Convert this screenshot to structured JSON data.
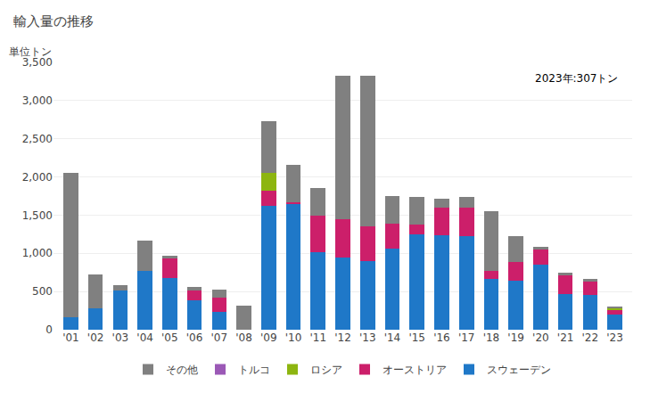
{
  "chart_data": {
    "type": "bar",
    "stacked": true,
    "title": "輸入量の推移",
    "ylabel": "単位トン",
    "annotation": "2023年:307トン",
    "categories": [
      "'01",
      "'02",
      "'03",
      "'04",
      "'05",
      "'06",
      "'07",
      "'08",
      "'09",
      "'10",
      "'11",
      "'12",
      "'13",
      "'14",
      "'15",
      "'16",
      "'17",
      "'18",
      "'19",
      "'20",
      "'21",
      "'22",
      "'23"
    ],
    "series": [
      {
        "name": "スウェーデン",
        "color": "#1f78c8",
        "values": [
          165,
          275,
          510,
          770,
          680,
          390,
          230,
          0,
          1620,
          1650,
          1020,
          950,
          900,
          1060,
          1250,
          1240,
          1230,
          670,
          645,
          855,
          465,
          450,
          195
        ]
      },
      {
        "name": "オーストリア",
        "color": "#cc1f6a",
        "values": [
          0,
          0,
          0,
          0,
          250,
          120,
          190,
          0,
          200,
          20,
          470,
          500,
          450,
          330,
          130,
          360,
          370,
          100,
          240,
          200,
          250,
          185,
          70
        ]
      },
      {
        "name": "ロシア",
        "color": "#8db510",
        "values": [
          0,
          0,
          0,
          0,
          0,
          0,
          0,
          0,
          230,
          0,
          0,
          0,
          0,
          0,
          0,
          0,
          0,
          0,
          0,
          0,
          0,
          0,
          20
        ]
      },
      {
        "name": "トルコ",
        "color": "#9b59b6",
        "values": [
          0,
          0,
          0,
          0,
          0,
          0,
          0,
          0,
          0,
          0,
          0,
          0,
          0,
          0,
          0,
          0,
          0,
          0,
          0,
          0,
          0,
          0,
          0
        ]
      },
      {
        "name": "その他",
        "color": "#808080",
        "values": [
          1890,
          450,
          70,
          400,
          40,
          50,
          100,
          320,
          680,
          490,
          360,
          1870,
          1970,
          360,
          360,
          110,
          140,
          780,
          340,
          35,
          30,
          30,
          22
        ]
      }
    ],
    "ylim": [
      0,
      3500
    ],
    "yticks": [
      0,
      500,
      {
        "value": 1000,
        "label": "1,000"
      },
      {
        "value": 1500,
        "label": "1,500"
      },
      {
        "value": 2000,
        "label": "2,000"
      },
      {
        "value": 2500,
        "label": "2,500"
      },
      {
        "value": 3000,
        "label": "3,000"
      },
      {
        "value": 3500,
        "label": "3,500"
      }
    ],
    "grid": true,
    "legend": "bottom"
  }
}
